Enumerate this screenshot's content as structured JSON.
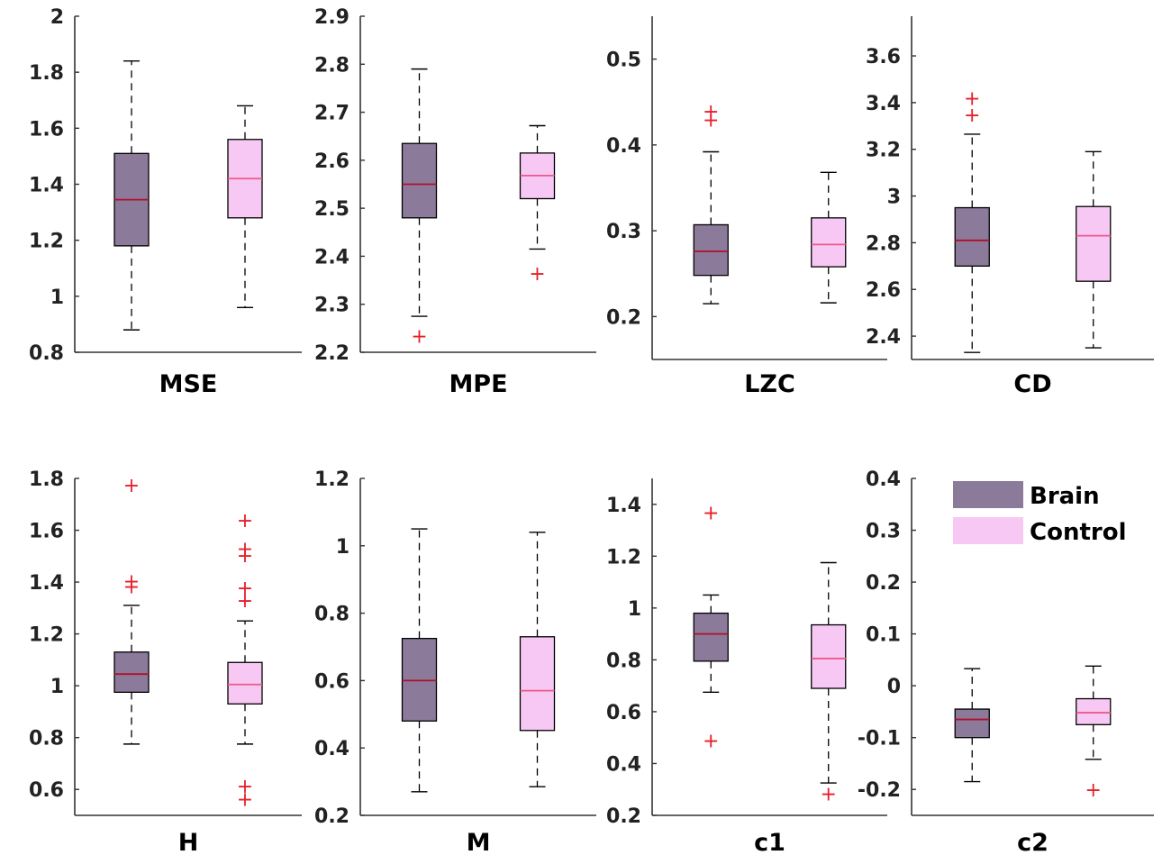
{
  "colors": {
    "brain_fill": "#8c7a9b",
    "control_fill": "#f8c8f4",
    "brain_median": "#b0102a",
    "control_median": "#ec5a8a",
    "outlier": "#e8202a",
    "axis": "#333333"
  },
  "legend": {
    "brain_label": "Brain",
    "control_label": "Control"
  },
  "chart_data": [
    {
      "type": "box",
      "xlabel": "MSE",
      "ylim": [
        0.8,
        2.0
      ],
      "yticks": [
        0.8,
        1,
        1.2,
        1.4,
        1.6,
        1.8,
        2
      ],
      "tick_labels": [
        "0.8",
        "1",
        "1.2",
        "1.4",
        "1.6",
        "1.8",
        "2"
      ],
      "series": [
        {
          "name": "Brain",
          "whisker_low": 0.88,
          "q1": 1.18,
          "median": 1.345,
          "q3": 1.51,
          "whisker_high": 1.84,
          "outliers": []
        },
        {
          "name": "Control",
          "whisker_low": 0.96,
          "q1": 1.28,
          "median": 1.42,
          "q3": 1.56,
          "whisker_high": 1.68,
          "outliers": []
        }
      ]
    },
    {
      "type": "box",
      "xlabel": "MPE",
      "ylim": [
        2.2,
        2.9
      ],
      "yticks": [
        2.2,
        2.3,
        2.4,
        2.5,
        2.6,
        2.7,
        2.8,
        2.9
      ],
      "tick_labels": [
        "2.2",
        "2.3",
        "2.4",
        "2.5",
        "2.6",
        "2.7",
        "2.8",
        "2.9"
      ],
      "series": [
        {
          "name": "Brain",
          "whisker_low": 2.275,
          "q1": 2.48,
          "median": 2.55,
          "q3": 2.635,
          "whisker_high": 2.79,
          "outliers": [
            2.235
          ]
        },
        {
          "name": "Control",
          "whisker_low": 2.415,
          "q1": 2.52,
          "median": 2.568,
          "q3": 2.615,
          "whisker_high": 2.672,
          "outliers": [
            2.365
          ]
        }
      ]
    },
    {
      "type": "box",
      "xlabel": "LZC",
      "ylim": [
        0.15,
        0.55
      ],
      "yticks": [
        0.2,
        0.3,
        0.4,
        0.5
      ],
      "tick_labels": [
        "0.2",
        "0.3",
        "0.4",
        "0.5"
      ],
      "series": [
        {
          "name": "Brain",
          "whisker_low": 0.215,
          "q1": 0.248,
          "median": 0.276,
          "q3": 0.307,
          "whisker_high": 0.392,
          "outliers": [
            0.43,
            0.44
          ]
        },
        {
          "name": "Control",
          "whisker_low": 0.216,
          "q1": 0.258,
          "median": 0.284,
          "q3": 0.315,
          "whisker_high": 0.368,
          "outliers": []
        }
      ]
    },
    {
      "type": "box",
      "xlabel": "CD",
      "ylim": [
        2.3,
        3.77
      ],
      "yticks": [
        2.4,
        2.6,
        2.8,
        3,
        3.2,
        3.4,
        3.6
      ],
      "tick_labels": [
        "2.4",
        "2.6",
        "2.8",
        "3",
        "3.2",
        "3.4",
        "3.6"
      ],
      "series": [
        {
          "name": "Brain",
          "whisker_low": 2.33,
          "q1": 2.7,
          "median": 2.81,
          "q3": 2.95,
          "whisker_high": 3.265,
          "outliers": [
            3.35,
            3.42
          ]
        },
        {
          "name": "Control",
          "whisker_low": 2.35,
          "q1": 2.635,
          "median": 2.83,
          "q3": 2.955,
          "whisker_high": 3.19,
          "outliers": []
        }
      ]
    },
    {
      "type": "box",
      "xlabel": "H",
      "ylim": [
        0.5,
        1.8
      ],
      "yticks": [
        0.6,
        0.8,
        1,
        1.2,
        1.4,
        1.6,
        1.8
      ],
      "tick_labels": [
        "0.6",
        "0.8",
        "1",
        "1.2",
        "1.4",
        "1.6",
        "1.8"
      ],
      "series": [
        {
          "name": "Brain",
          "whisker_low": 0.775,
          "q1": 0.975,
          "median": 1.045,
          "q3": 1.13,
          "whisker_high": 1.31,
          "outliers": [
            1.385,
            1.405,
            1.775
          ]
        },
        {
          "name": "Control",
          "whisker_low": 0.775,
          "q1": 0.93,
          "median": 1.005,
          "q3": 1.09,
          "whisker_high": 1.25,
          "outliers": [
            0.565,
            0.615,
            1.33,
            1.38,
            1.505,
            1.53,
            1.64
          ]
        }
      ]
    },
    {
      "type": "box",
      "xlabel": "M",
      "ylim": [
        0.2,
        1.2
      ],
      "yticks": [
        0.2,
        0.4,
        0.6,
        0.8,
        1,
        1.2
      ],
      "tick_labels": [
        "0.2",
        "0.4",
        "0.6",
        "0.8",
        "1",
        "1.2"
      ],
      "series": [
        {
          "name": "Brain",
          "whisker_low": 0.27,
          "q1": 0.48,
          "median": 0.6,
          "q3": 0.725,
          "whisker_high": 1.05,
          "outliers": []
        },
        {
          "name": "Control",
          "whisker_low": 0.285,
          "q1": 0.452,
          "median": 0.57,
          "q3": 0.73,
          "whisker_high": 1.04,
          "outliers": []
        }
      ]
    },
    {
      "type": "box",
      "xlabel": "c1",
      "ylim": [
        0.2,
        1.5
      ],
      "yticks": [
        0.2,
        0.4,
        0.6,
        0.8,
        1,
        1.2,
        1.4
      ],
      "tick_labels": [
        "0.2",
        "0.4",
        "0.6",
        "0.8",
        "1",
        "1.2",
        "1.4"
      ],
      "series": [
        {
          "name": "Brain",
          "whisker_low": 0.675,
          "q1": 0.795,
          "median": 0.9,
          "q3": 0.98,
          "whisker_high": 1.05,
          "outliers": [
            0.49,
            1.37
          ]
        },
        {
          "name": "Control",
          "whisker_low": 0.325,
          "q1": 0.69,
          "median": 0.805,
          "q3": 0.935,
          "whisker_high": 1.175,
          "outliers": [
            0.285
          ]
        }
      ]
    },
    {
      "type": "box",
      "xlabel": "c2",
      "ylim": [
        -0.25,
        0.4
      ],
      "yticks": [
        -0.2,
        -0.1,
        0,
        0.1,
        0.2,
        0.3,
        0.4
      ],
      "tick_labels": [
        "-0.2",
        "-0.1",
        "0",
        "0.1",
        "0.2",
        "0.3",
        "0.4"
      ],
      "series": [
        {
          "name": "Brain",
          "whisker_low": -0.185,
          "q1": -0.1,
          "median": -0.065,
          "q3": -0.045,
          "whisker_high": 0.033,
          "outliers": []
        },
        {
          "name": "Control",
          "whisker_low": -0.142,
          "q1": -0.075,
          "median": -0.052,
          "q3": -0.025,
          "whisker_high": 0.038,
          "outliers": [
            -0.2
          ]
        }
      ]
    }
  ]
}
